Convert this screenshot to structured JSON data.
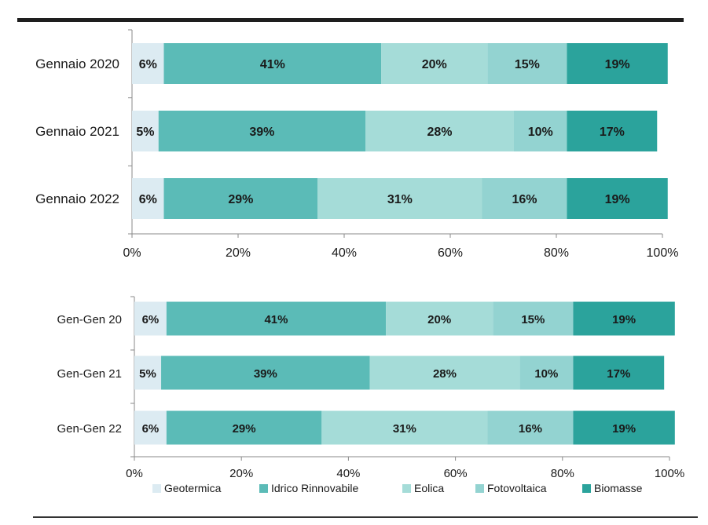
{
  "legend_labels": [
    "Geotermica",
    "Idrico Rinnovabile",
    "Eolica",
    "Fotovoltaica",
    "Biomasse"
  ],
  "colors": {
    "Geotermica": "#dcebf2",
    "Idrico Rinnovabile": "#5bbbb7",
    "Eolica": "#a5dcd8",
    "Fotovoltaica": "#93d3d1",
    "Biomasse": "#2ba39c"
  },
  "chart_data": [
    {
      "type": "bar",
      "orientation": "horizontal",
      "stacked": true,
      "categories": [
        "Gennaio 2020",
        "Gennaio 2021",
        "Gennaio 2022"
      ],
      "series": [
        {
          "name": "Geotermica",
          "values": [
            6,
            5,
            6
          ]
        },
        {
          "name": "Idrico Rinnovabile",
          "values": [
            41,
            39,
            29
          ]
        },
        {
          "name": "Eolica",
          "values": [
            20,
            28,
            31
          ]
        },
        {
          "name": "Fotovoltaica",
          "values": [
            15,
            10,
            16
          ]
        },
        {
          "name": "Biomasse",
          "values": [
            19,
            17,
            19
          ]
        }
      ],
      "xlim": [
        0,
        100
      ],
      "xticks": [
        "0%",
        "20%",
        "40%",
        "60%",
        "80%",
        "100%"
      ],
      "grid": false,
      "title": "",
      "xlabel": "",
      "ylabel": ""
    },
    {
      "type": "bar",
      "orientation": "horizontal",
      "stacked": true,
      "categories": [
        "Gen-Gen 20",
        "Gen-Gen 21",
        "Gen-Gen 22"
      ],
      "series": [
        {
          "name": "Geotermica",
          "values": [
            6,
            5,
            6
          ]
        },
        {
          "name": "Idrico Rinnovabile",
          "values": [
            41,
            39,
            29
          ]
        },
        {
          "name": "Eolica",
          "values": [
            20,
            28,
            31
          ]
        },
        {
          "name": "Fotovoltaica",
          "values": [
            15,
            10,
            16
          ]
        },
        {
          "name": "Biomasse",
          "values": [
            19,
            17,
            19
          ]
        }
      ],
      "xlim": [
        0,
        100
      ],
      "xticks": [
        "0%",
        "20%",
        "40%",
        "60%",
        "80%",
        "100%"
      ],
      "grid": false,
      "legend": "bottom",
      "title": "",
      "xlabel": "",
      "ylabel": ""
    }
  ]
}
